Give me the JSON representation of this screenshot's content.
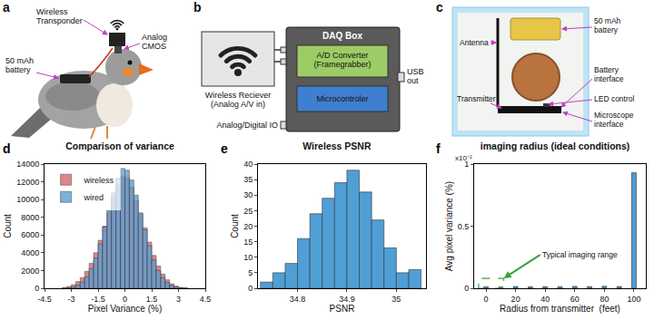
{
  "panel_labels": [
    "a",
    "b",
    "c",
    "d",
    "e",
    "f"
  ],
  "diagram": {
    "a": {
      "transponder": "Wireless\nTransponder",
      "cmos": "Analog\nCMOS",
      "battery": "50 mAh\nbattery"
    },
    "b": {
      "receiver": "Wireless Reciever\n(Analog A/V in)",
      "daq": "DAQ Box",
      "adc": "A/D Converter\n(Framegrabber)",
      "mcu": "Microcontroler",
      "usb": "USB\nout",
      "io": "Analog/Digital IO"
    },
    "c": {
      "antenna": "Antenna",
      "battery": "50 mAh\nbattery",
      "battery_interface": "Battery\ninterface",
      "led": "LED control",
      "transmitter": "Transmitter",
      "microscope": "Microscope\ninterface"
    }
  },
  "chart_data": [
    {
      "type": "histogram",
      "title": "Comparison of variance",
      "x_label": "Pixel Variance (%)",
      "y_label": "Count",
      "bins": [
        -3.5,
        -3.25,
        -3,
        -2.75,
        -2.5,
        -2.25,
        -2,
        -1.75,
        -1.5,
        -1.25,
        -1,
        -0.75,
        -0.5,
        -0.25,
        0,
        0.25,
        0.5,
        0.75,
        1,
        1.25,
        1.5,
        1.75,
        2,
        2.25,
        2.5,
        2.75,
        3,
        3.25,
        3.5
      ],
      "series": [
        {
          "name": "wireless",
          "color": "#d9666b",
          "values": [
            80,
            200,
            400,
            750,
            1200,
            1900,
            2800,
            4000,
            5400,
            7000,
            8600,
            10200,
            11600,
            12600,
            12500,
            11400,
            9900,
            8400,
            6800,
            5200,
            3700,
            2500,
            1600,
            950,
            500,
            240,
            100,
            40
          ]
        },
        {
          "name": "wired",
          "color": "#5a9fd4",
          "values": [
            20,
            60,
            150,
            350,
            700,
            1300,
            2200,
            3400,
            5000,
            6900,
            8800,
            10800,
            12400,
            13500,
            13300,
            12200,
            10500,
            8500,
            6600,
            4800,
            3200,
            2000,
            1200,
            650,
            320,
            140,
            50,
            15
          ]
        }
      ],
      "xlim": [
        -4.5,
        4.5
      ],
      "xticks": [
        -4.5,
        -3,
        -1.5,
        0,
        1.5,
        3,
        4.5
      ],
      "ylim": [
        0,
        14000
      ],
      "yticks": [
        0,
        2000,
        4000,
        6000,
        8000,
        10000,
        12000,
        14000
      ],
      "legend": "upper left",
      "grid": false
    },
    {
      "type": "histogram",
      "title": "Wireless PSNR",
      "x_label": "PSNR",
      "y_label": "Count",
      "bins": [
        34.725,
        34.75,
        34.775,
        34.8,
        34.825,
        34.85,
        34.875,
        34.9,
        34.925,
        34.95,
        34.975,
        35,
        35.025,
        35.05
      ],
      "values": [
        2,
        5,
        8,
        16,
        24,
        29,
        34,
        38,
        31,
        22,
        13,
        5,
        6
      ],
      "color": "#4f9fd6",
      "xlim": [
        34.72,
        35.06
      ],
      "xticks": [
        34.8,
        34.9,
        35
      ],
      "ylim": [
        0,
        40
      ],
      "yticks": [
        0,
        5,
        10,
        15,
        20,
        25,
        30,
        35,
        40
      ],
      "grid": false
    },
    {
      "type": "bar",
      "title": "imaging radius (ideal conditions)",
      "x_label": "Radius from transmitter  (feet)",
      "y_label": "Avg pixel variance (%)",
      "x": [
        0,
        10,
        20,
        30,
        40,
        50,
        60,
        70,
        80,
        90,
        100
      ],
      "values": [
        0.012,
        0.01,
        0.014,
        0.011,
        0.013,
        0.012,
        0.015,
        0.013,
        0.016,
        0.014,
        0.93
      ],
      "color": "#4f9fd6",
      "xlim": [
        -8,
        108
      ],
      "xticks": [
        0,
        20,
        40,
        60,
        80,
        100
      ],
      "ylim": [
        0,
        1
      ],
      "yticks": [
        0,
        0.5,
        1
      ],
      "annotations": [
        "x10⁻²"
      ],
      "highlight": {
        "label": "Typical imaging range",
        "x": [
          -5,
          12
        ],
        "y": [
          0,
          0.08
        ]
      },
      "grid": false
    }
  ]
}
